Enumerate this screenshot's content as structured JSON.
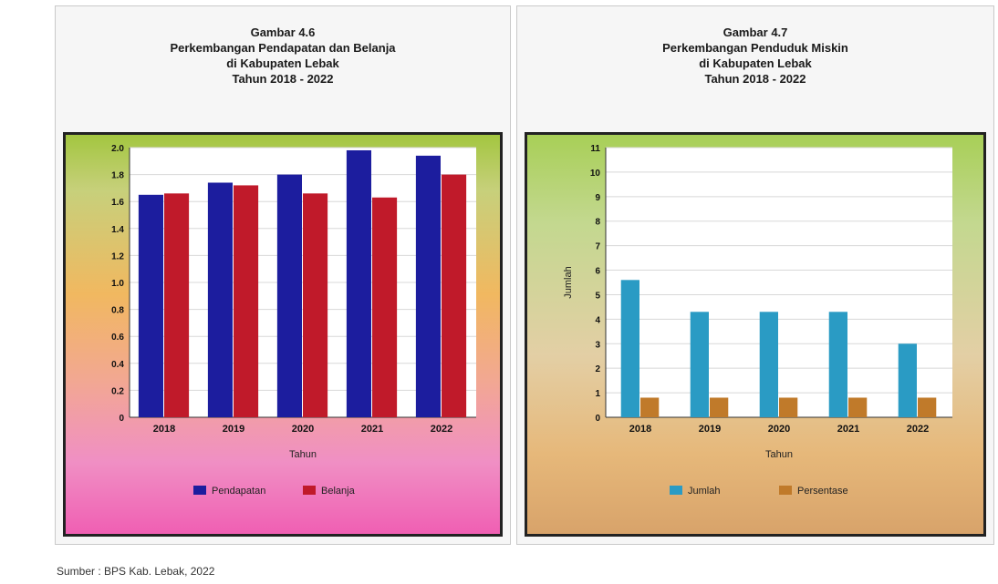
{
  "chart_data": [
    {
      "type": "bar",
      "caption_lines": [
        "Gambar 4.6",
        "Perkembangan Pendapatan dan Belanja",
        "di Kabupaten Lebak",
        "Tahun 2018 - 2022"
      ],
      "categories": [
        "2018",
        "2019",
        "2020",
        "2021",
        "2022"
      ],
      "series": [
        {
          "name": "Pendapatan",
          "color": "#1c1d9e",
          "values": [
            1.65,
            1.74,
            1.8,
            1.98,
            1.94
          ]
        },
        {
          "name": "Belanja",
          "color": "#c01a2a",
          "values": [
            1.66,
            1.72,
            1.66,
            1.63,
            1.8
          ]
        }
      ],
      "ylim": [
        0,
        2.0
      ],
      "yticks": [
        "0",
        "0.2",
        "0.4",
        "0.6",
        "0.8",
        "1.0",
        "1.2",
        "1.4",
        "1.6",
        "1.8",
        "2.0"
      ],
      "xlabel": "Tahun",
      "ylabel": "",
      "grid": true,
      "legend_placement": "bottom"
    },
    {
      "type": "bar",
      "caption_lines": [
        "Gambar 4.7",
        "Perkembangan Penduduk Miskin",
        "di Kabupaten Lebak",
        "Tahun 2018 - 2022"
      ],
      "categories": [
        "2018",
        "2019",
        "2020",
        "2021",
        "2022"
      ],
      "series": [
        {
          "name": "Jumlah",
          "color": "#2a9bc4",
          "values": [
            5.6,
            4.3,
            4.3,
            4.3,
            3.0
          ]
        },
        {
          "name": "Persentase",
          "color": "#c07a2a",
          "values": [
            0.8,
            0.8,
            0.8,
            0.8,
            0.8
          ]
        }
      ],
      "ylim": [
        0,
        11
      ],
      "yticks": [
        "0",
        "1",
        "2",
        "3",
        "4",
        "5",
        "6",
        "7",
        "8",
        "9",
        "10",
        "11"
      ],
      "xlabel": "Tahun",
      "ylabel": "Jumlah",
      "grid": true,
      "legend_placement": "bottom"
    }
  ],
  "source_text": "Sumber : BPS Kab. Lebak, 2022"
}
